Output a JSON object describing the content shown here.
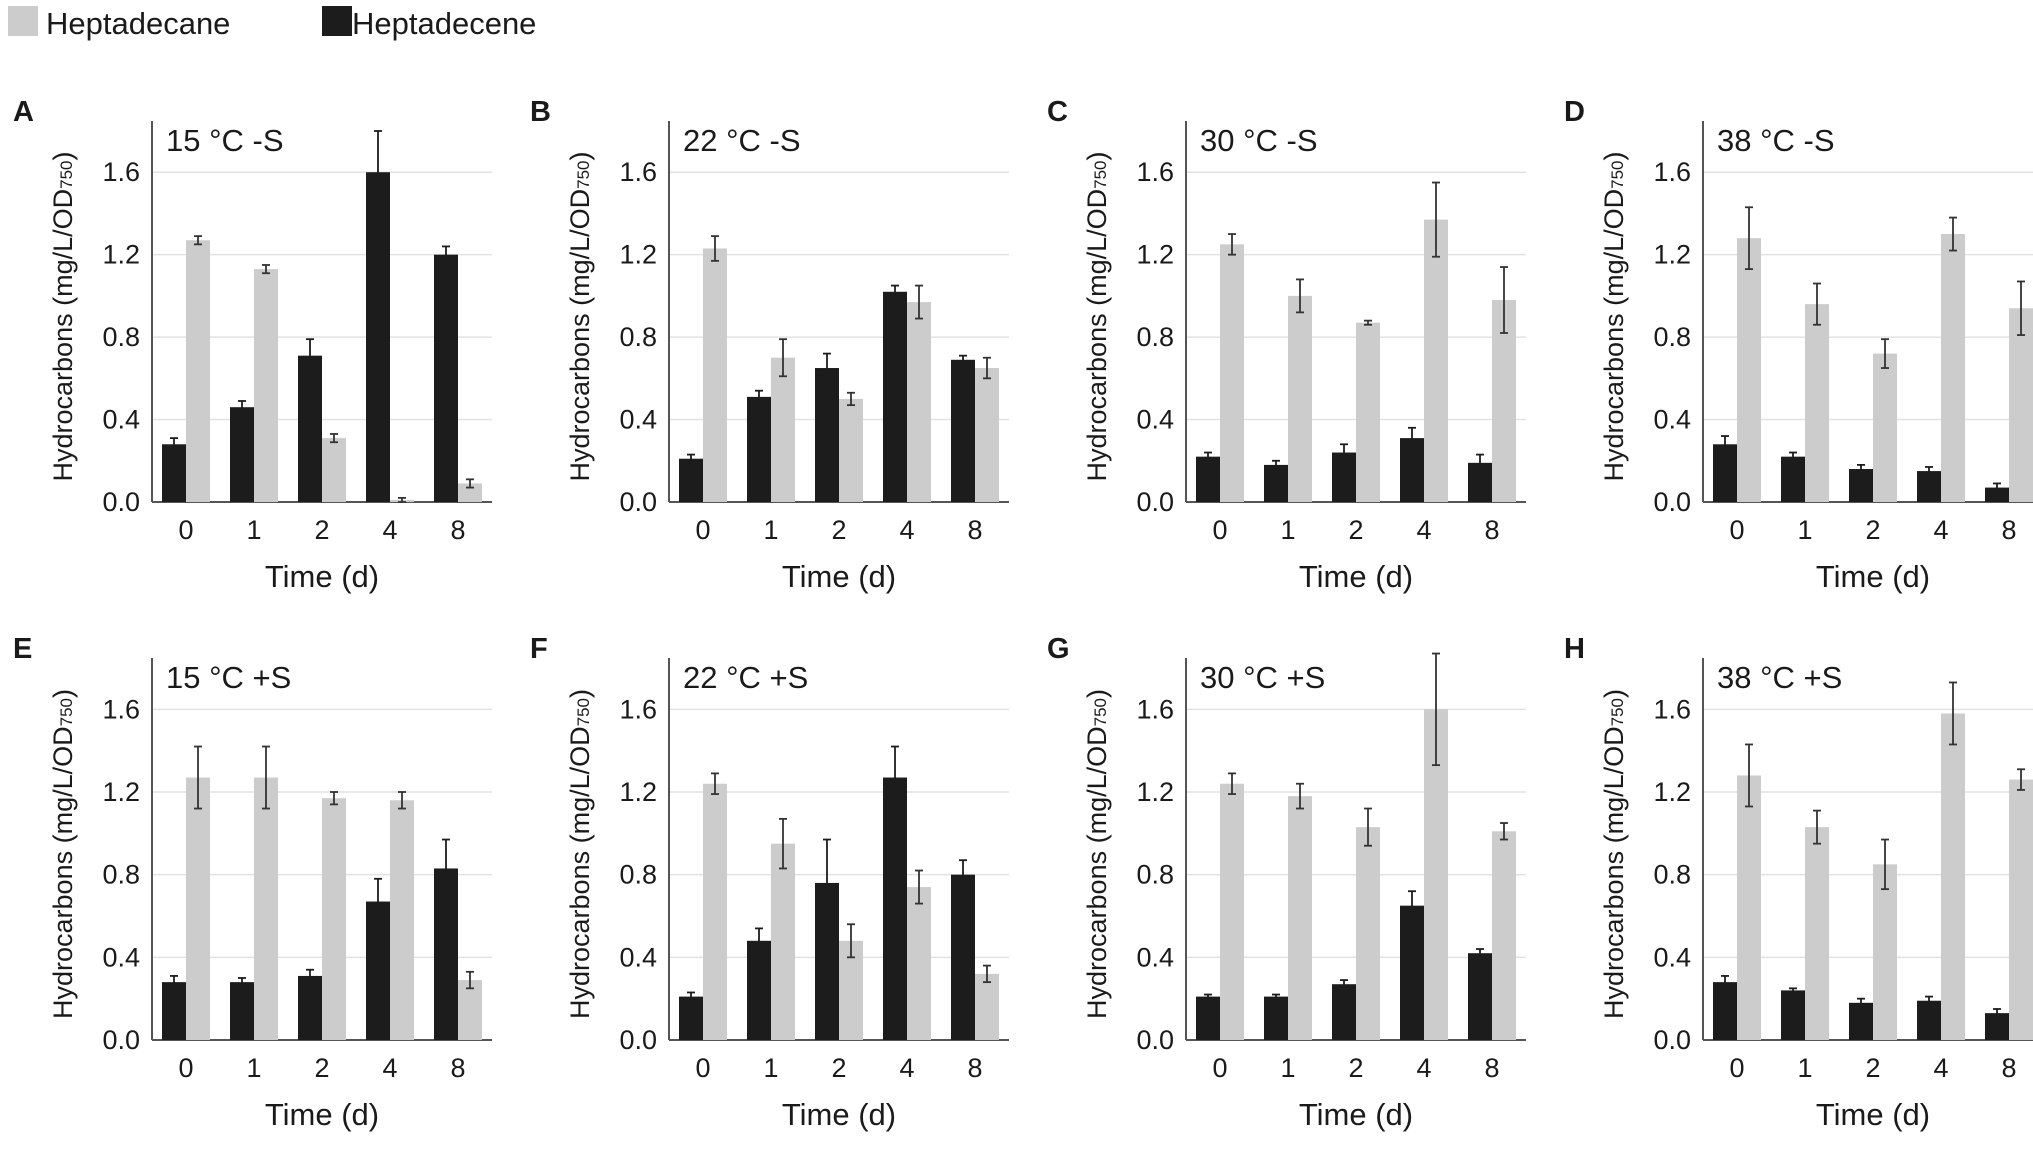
{
  "legend": [
    {
      "name": "Heptadecane",
      "color": "#cccccc"
    },
    {
      "name": "Heptadecene",
      "color": "#1c1c1c"
    }
  ],
  "chart_data": [
    {
      "type": "bar",
      "panel": "A",
      "title": "15 °C -S",
      "xlabel": "Time (d)",
      "ylabel": "Hydrocarbons (mg/L/OD",
      "ylabel_sub": "750",
      "ylabel_end": ")",
      "ylim": [
        0,
        1.8
      ],
      "yticks": [
        "0.0",
        "0.4",
        "0.8",
        "1.2",
        "1.6"
      ],
      "categories": [
        "0",
        "1",
        "2",
        "4",
        "8"
      ],
      "series": [
        {
          "name": "Heptadecene",
          "values": [
            0.28,
            0.46,
            0.71,
            1.6,
            1.2
          ],
          "errors": [
            0.03,
            0.03,
            0.08,
            0.2,
            0.04
          ]
        },
        {
          "name": "Heptadecane",
          "values": [
            1.27,
            1.13,
            0.31,
            0.01,
            0.09
          ],
          "errors": [
            0.02,
            0.02,
            0.02,
            0.01,
            0.02
          ]
        }
      ]
    },
    {
      "type": "bar",
      "panel": "B",
      "title": "22 °C -S",
      "xlabel": "Time (d)",
      "ylabel": "Hydrocarbons (mg/L/OD",
      "ylabel_sub": "750",
      "ylabel_end": ")",
      "ylim": [
        0,
        1.8
      ],
      "yticks": [
        "0.0",
        "0.4",
        "0.8",
        "1.2",
        "1.6"
      ],
      "categories": [
        "0",
        "1",
        "2",
        "4",
        "8"
      ],
      "series": [
        {
          "name": "Heptadecene",
          "values": [
            0.21,
            0.51,
            0.65,
            1.02,
            0.69
          ],
          "errors": [
            0.02,
            0.03,
            0.07,
            0.03,
            0.02
          ]
        },
        {
          "name": "Heptadecane",
          "values": [
            1.23,
            0.7,
            0.5,
            0.97,
            0.65
          ],
          "errors": [
            0.06,
            0.09,
            0.03,
            0.08,
            0.05
          ]
        }
      ]
    },
    {
      "type": "bar",
      "panel": "C",
      "title": "30 °C -S",
      "xlabel": "Time (d)",
      "ylabel": "Hydrocarbons (mg/L/OD",
      "ylabel_sub": "750",
      "ylabel_end": ")",
      "ylim": [
        0,
        1.8
      ],
      "yticks": [
        "0.0",
        "0.4",
        "0.8",
        "1.2",
        "1.6"
      ],
      "categories": [
        "0",
        "1",
        "2",
        "4",
        "8"
      ],
      "series": [
        {
          "name": "Heptadecene",
          "values": [
            0.22,
            0.18,
            0.24,
            0.31,
            0.19
          ],
          "errors": [
            0.02,
            0.02,
            0.04,
            0.05,
            0.04
          ]
        },
        {
          "name": "Heptadecane",
          "values": [
            1.25,
            1.0,
            0.87,
            1.37,
            0.98
          ],
          "errors": [
            0.05,
            0.08,
            0.01,
            0.18,
            0.16
          ]
        }
      ]
    },
    {
      "type": "bar",
      "panel": "D",
      "title": "38 °C -S",
      "xlabel": "Time (d)",
      "ylabel": "Hydrocarbons (mg/L/OD",
      "ylabel_sub": "750",
      "ylabel_end": ")",
      "ylim": [
        0,
        1.8
      ],
      "yticks": [
        "0.0",
        "0.4",
        "0.8",
        "1.2",
        "1.6"
      ],
      "categories": [
        "0",
        "1",
        "2",
        "4",
        "8"
      ],
      "series": [
        {
          "name": "Heptadecene",
          "values": [
            0.28,
            0.22,
            0.16,
            0.15,
            0.07
          ],
          "errors": [
            0.04,
            0.02,
            0.02,
            0.02,
            0.02
          ]
        },
        {
          "name": "Heptadecane",
          "values": [
            1.28,
            0.96,
            0.72,
            1.3,
            0.94
          ],
          "errors": [
            0.15,
            0.1,
            0.07,
            0.08,
            0.13
          ]
        }
      ]
    },
    {
      "type": "bar",
      "panel": "E",
      "title": "15 °C +S",
      "xlabel": "Time (d)",
      "ylabel": "Hydrocarbons (mg/L/OD",
      "ylabel_sub": "750",
      "ylabel_end": ")",
      "ylim": [
        0,
        1.8
      ],
      "yticks": [
        "0.0",
        "0.4",
        "0.8",
        "1.2",
        "1.6"
      ],
      "categories": [
        "0",
        "1",
        "2",
        "4",
        "8"
      ],
      "series": [
        {
          "name": "Heptadecene",
          "values": [
            0.28,
            0.28,
            0.31,
            0.67,
            0.83
          ],
          "errors": [
            0.03,
            0.02,
            0.03,
            0.11,
            0.14
          ]
        },
        {
          "name": "Heptadecane",
          "values": [
            1.27,
            1.27,
            1.17,
            1.16,
            0.29
          ],
          "errors": [
            0.15,
            0.15,
            0.03,
            0.04,
            0.04
          ]
        }
      ]
    },
    {
      "type": "bar",
      "panel": "F",
      "title": "22 °C +S",
      "xlabel": "Time (d)",
      "ylabel": "Hydrocarbons (mg/L/OD",
      "ylabel_sub": "750",
      "ylabel_end": ")",
      "ylim": [
        0,
        1.8
      ],
      "yticks": [
        "0.0",
        "0.4",
        "0.8",
        "1.2",
        "1.6"
      ],
      "categories": [
        "0",
        "1",
        "2",
        "4",
        "8"
      ],
      "series": [
        {
          "name": "Heptadecene",
          "values": [
            0.21,
            0.48,
            0.76,
            1.27,
            0.8
          ],
          "errors": [
            0.02,
            0.06,
            0.21,
            0.15,
            0.07
          ]
        },
        {
          "name": "Heptadecane",
          "values": [
            1.24,
            0.95,
            0.48,
            0.74,
            0.32
          ],
          "errors": [
            0.05,
            0.12,
            0.08,
            0.08,
            0.04
          ]
        }
      ]
    },
    {
      "type": "bar",
      "panel": "G",
      "title": "30 °C +S",
      "xlabel": "Time (d)",
      "ylabel": "Hydrocarbons (mg/L/OD",
      "ylabel_sub": "750",
      "ylabel_end": ")",
      "ylim": [
        0,
        1.8
      ],
      "yticks": [
        "0.0",
        "0.4",
        "0.8",
        "1.2",
        "1.6"
      ],
      "categories": [
        "0",
        "1",
        "2",
        "4",
        "8"
      ],
      "series": [
        {
          "name": "Heptadecene",
          "values": [
            0.21,
            0.21,
            0.27,
            0.65,
            0.42
          ],
          "errors": [
            0.01,
            0.01,
            0.02,
            0.07,
            0.02
          ]
        },
        {
          "name": "Heptadecane",
          "values": [
            1.24,
            1.18,
            1.03,
            1.6,
            1.01
          ],
          "errors": [
            0.05,
            0.06,
            0.09,
            0.27,
            0.04
          ]
        }
      ]
    },
    {
      "type": "bar",
      "panel": "H",
      "title": "38 °C +S",
      "xlabel": "Time (d)",
      "ylabel": "Hydrocarbons (mg/L/OD",
      "ylabel_sub": "750",
      "ylabel_end": ")",
      "ylim": [
        0,
        1.8
      ],
      "yticks": [
        "0.0",
        "0.4",
        "0.8",
        "1.2",
        "1.6"
      ],
      "categories": [
        "0",
        "1",
        "2",
        "4",
        "8"
      ],
      "series": [
        {
          "name": "Heptadecene",
          "values": [
            0.28,
            0.24,
            0.18,
            0.19,
            0.13
          ],
          "errors": [
            0.03,
            0.01,
            0.02,
            0.02,
            0.02
          ]
        },
        {
          "name": "Heptadecane",
          "values": [
            1.28,
            1.03,
            0.85,
            1.58,
            1.26
          ],
          "errors": [
            0.15,
            0.08,
            0.12,
            0.15,
            0.05
          ]
        }
      ]
    }
  ]
}
